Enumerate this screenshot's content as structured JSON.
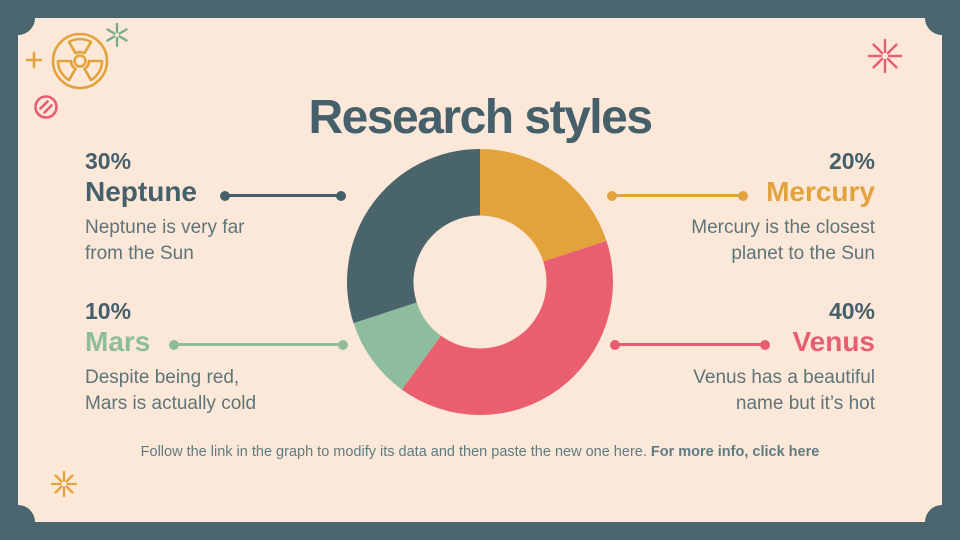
{
  "slide": {
    "title": "Research styles",
    "footer_text": "Follow the link in the graph to modify its data and then paste the new one here.",
    "footer_link": "For more info, click here"
  },
  "callouts": [
    {
      "percent": "30%",
      "name": "Neptune",
      "color": "#46606b",
      "desc_lines": [
        "Neptune is very far",
        "from the Sun"
      ]
    },
    {
      "percent": "20%",
      "name": "Mercury",
      "color": "#e2a33c",
      "desc_lines": [
        "Mercury is the closest",
        "planet to the Sun"
      ]
    },
    {
      "percent": "10%",
      "name": "Mars",
      "color": "#8ebd9e",
      "desc_lines": [
        "Despite being red,",
        "Mars is actually cold"
      ]
    },
    {
      "percent": "40%",
      "name": "Venus",
      "color": "#e75e6f",
      "desc_lines": [
        "Venus has a beautiful",
        "name but it’s hot"
      ]
    }
  ],
  "chart_data": {
    "type": "pie",
    "subtype": "donut",
    "title": "Research styles",
    "categories": [
      "Mercury",
      "Venus",
      "Mars",
      "Neptune"
    ],
    "values": [
      20,
      40,
      10,
      30
    ],
    "unit": "%",
    "colors": [
      "#e2a33c",
      "#e95f70",
      "#8ebd9e",
      "#4a646b"
    ],
    "start_angle_deg": 0,
    "direction": "clockwise",
    "inner_radius_ratio": 0.5,
    "legend": "none",
    "labels": "external-callouts"
  },
  "decorations": {
    "radiation": {
      "icon": "radiation-icon",
      "color": "#e2a33c"
    },
    "plus": {
      "icon": "plus-icon",
      "color": "#e2a33c"
    },
    "asterisk_green": {
      "icon": "asterisk-icon",
      "color": "#79ab8d"
    },
    "no_entry": {
      "icon": "no-entry-icon",
      "color": "#e75e6f"
    },
    "burst_red": {
      "icon": "burst-icon",
      "color": "#e75e6f"
    },
    "asterisk_yellow": {
      "icon": "asterisk-icon",
      "color": "#e2a33c"
    }
  },
  "colors": {
    "frame": "#4a656d",
    "card_background": "#fce8d8",
    "heading": "#46606b",
    "body_text": "#5e7479",
    "footer_text": "#5e7b81"
  }
}
